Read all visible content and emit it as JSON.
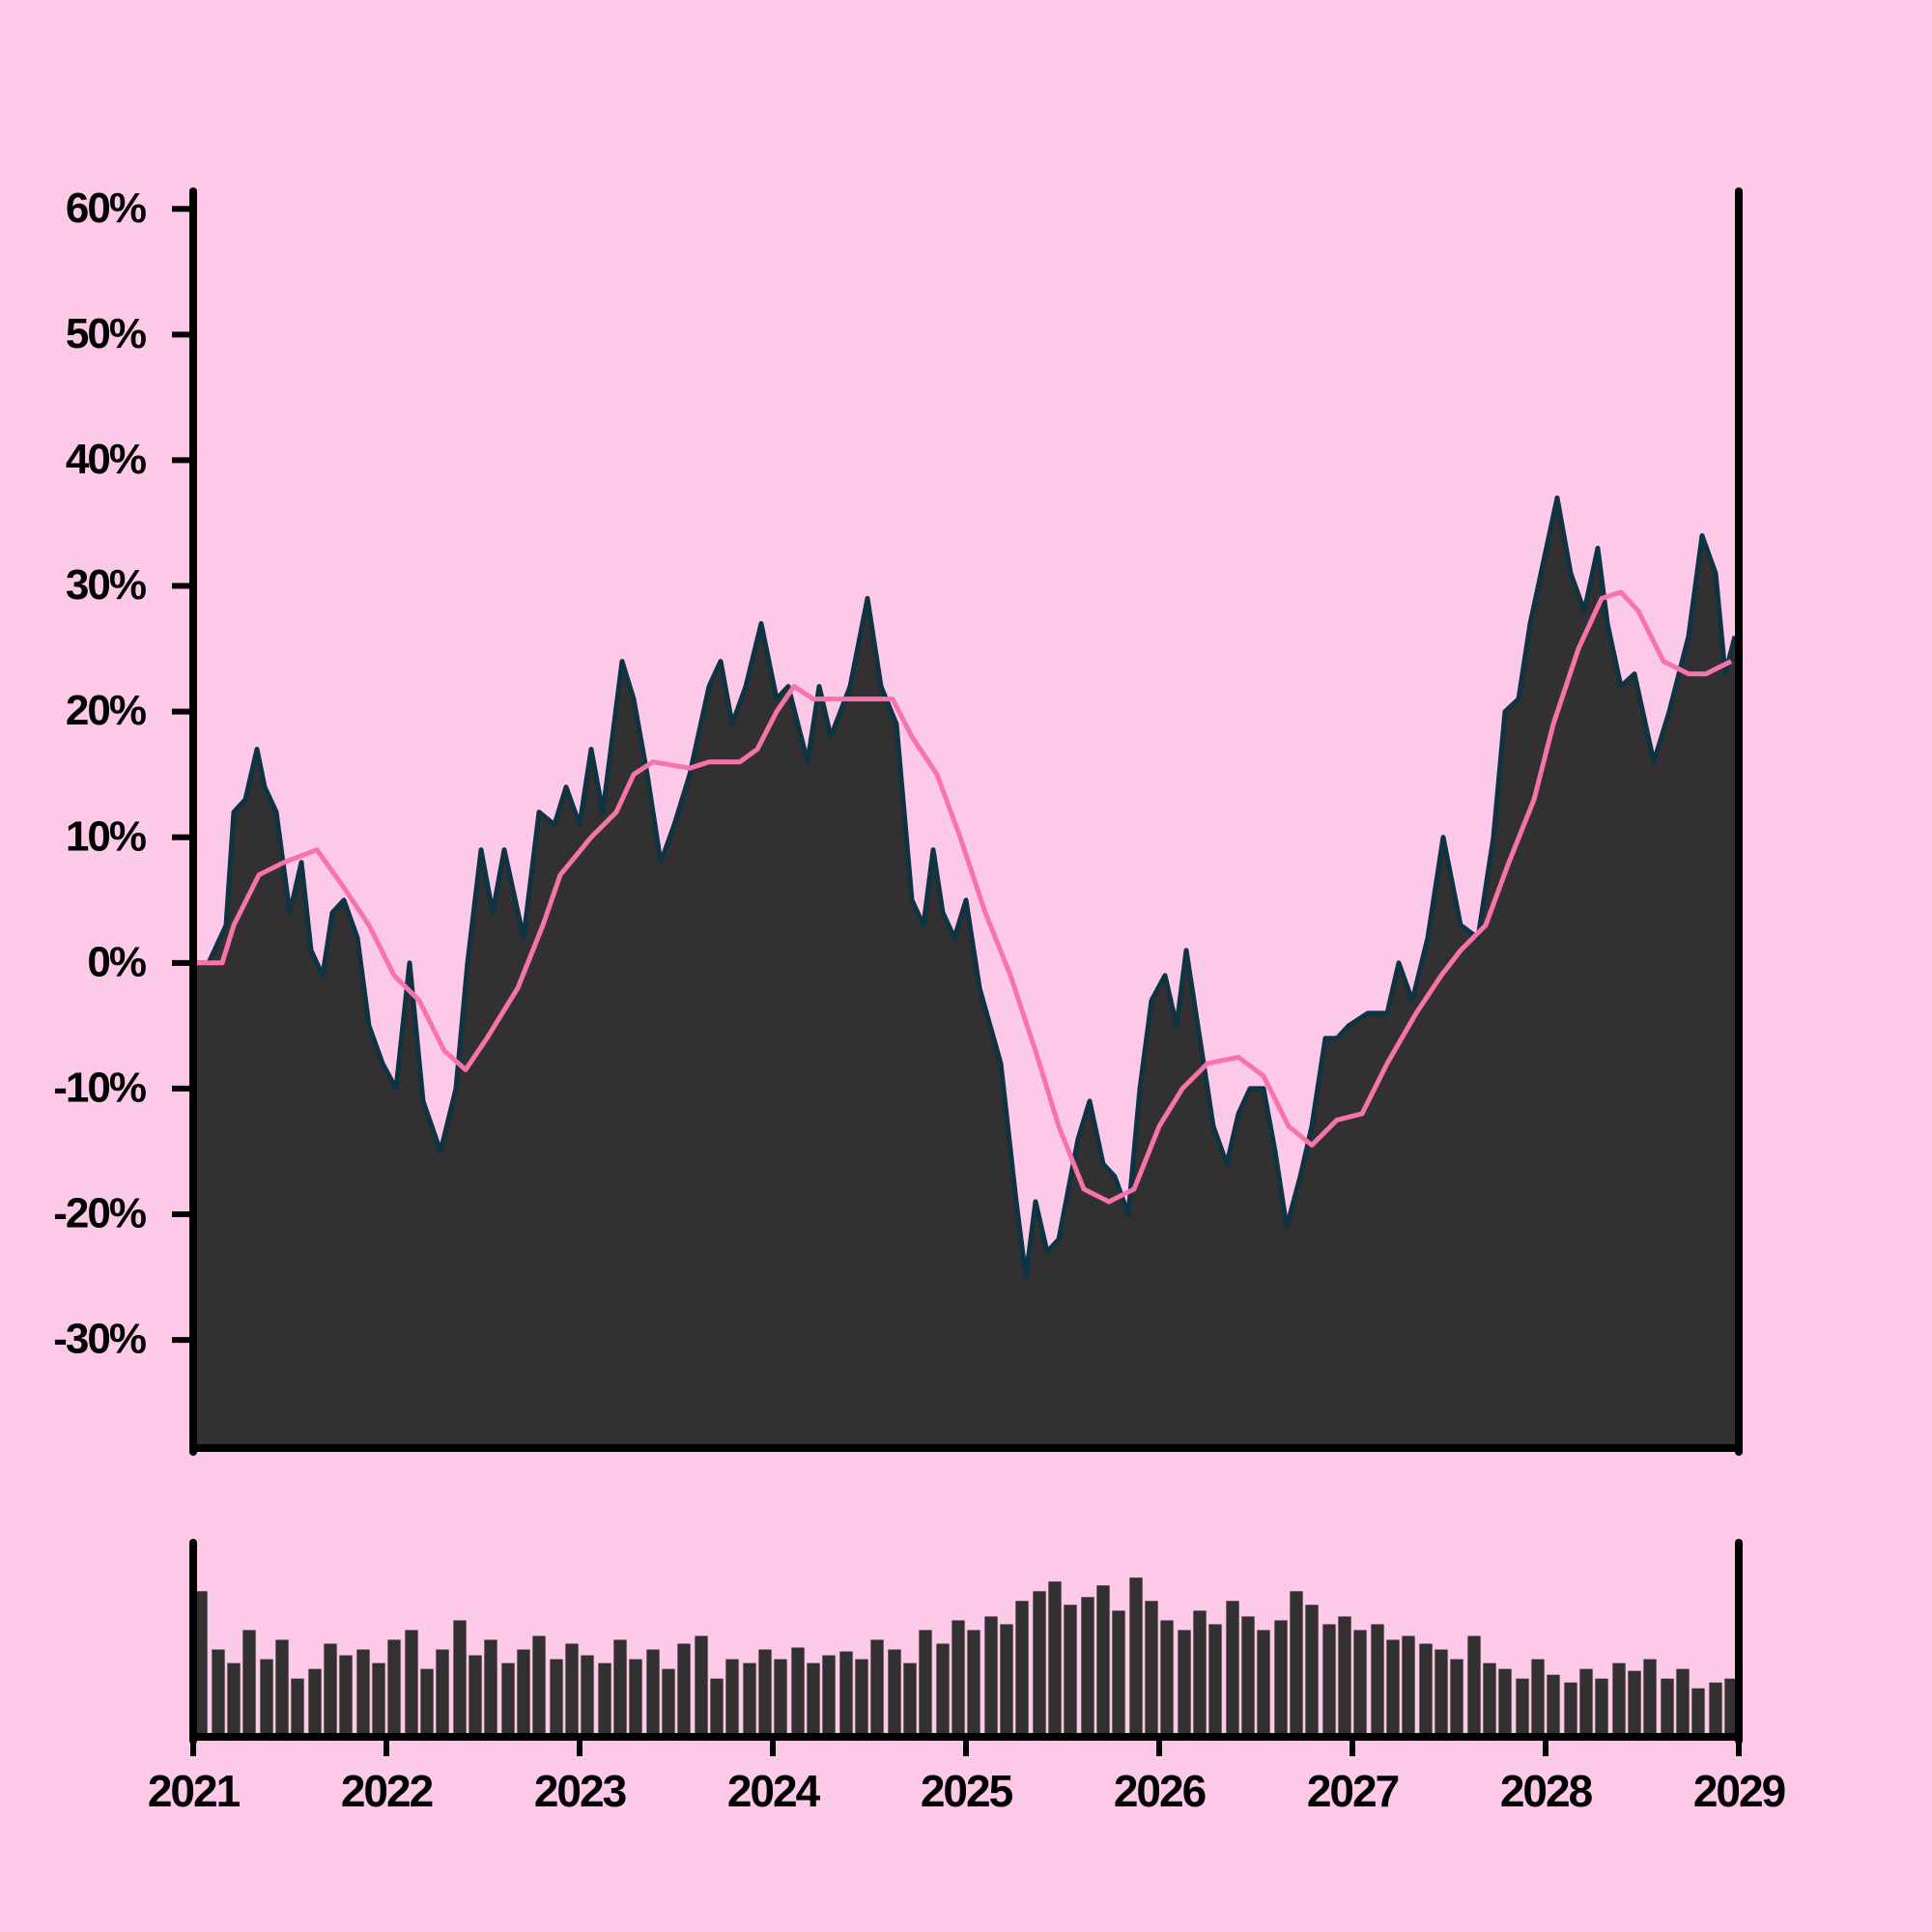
{
  "chart_data": [
    {
      "type": "area",
      "xlim": [
        2021,
        2029
      ],
      "ylim": [
        -38.6,
        61.4
      ],
      "yticks": [
        {
          "value": -30,
          "label": "-30%"
        },
        {
          "value": -20,
          "label": "-20%"
        },
        {
          "value": -10,
          "label": "-10%"
        },
        {
          "value": 0,
          "label": "0%"
        },
        {
          "value": 10,
          "label": "10%"
        },
        {
          "value": 20,
          "label": "20%"
        },
        {
          "value": 30,
          "label": "30%"
        },
        {
          "value": 40,
          "label": "40%"
        },
        {
          "value": 50,
          "label": "50%"
        },
        {
          "value": 60,
          "label": "60%"
        }
      ],
      "series": [
        {
          "type": "area",
          "color": "#333031",
          "edge_color": "#0e3343",
          "x": [
            2021.0,
            2021.08,
            2021.17,
            2021.21,
            2021.27,
            2021.33,
            2021.37,
            2021.43,
            2021.5,
            2021.56,
            2021.61,
            2021.67,
            2021.72,
            2021.78,
            2021.85,
            2021.91,
            2021.98,
            2022.05,
            2022.12,
            2022.19,
            2022.28,
            2022.36,
            2022.42,
            2022.49,
            2022.55,
            2022.61,
            2022.71,
            2022.79,
            2022.87,
            2022.93,
            2023.0,
            2023.06,
            2023.12,
            2023.22,
            2023.28,
            2023.35,
            2023.42,
            2023.49,
            2023.57,
            2023.67,
            2023.73,
            2023.79,
            2023.86,
            2023.94,
            2024.02,
            2024.08,
            2024.18,
            2024.24,
            2024.3,
            2024.4,
            2024.49,
            2024.56,
            2024.64,
            2024.72,
            2024.78,
            2024.83,
            2024.88,
            2024.94,
            2025.0,
            2025.07,
            2025.18,
            2025.26,
            2025.31,
            2025.36,
            2025.42,
            2025.48,
            2025.58,
            2025.64,
            2025.71,
            2025.77,
            2025.84,
            2025.9,
            2025.96,
            2026.03,
            2026.09,
            2026.14,
            2026.22,
            2026.28,
            2026.35,
            2026.41,
            2026.47,
            2026.54,
            2026.6,
            2026.66,
            2026.73,
            2026.79,
            2026.86,
            2026.92,
            2026.98,
            2027.08,
            2027.18,
            2027.24,
            2027.31,
            2027.39,
            2027.47,
            2027.56,
            2027.65,
            2027.73,
            2027.79,
            2027.86,
            2027.92,
            2027.99,
            2028.06,
            2028.13,
            2028.2,
            2028.27,
            2028.32,
            2028.39,
            2028.46,
            2028.56,
            2028.64,
            2028.74,
            2028.81,
            2028.88,
            2028.93,
            2028.98
          ],
          "values": [
            0,
            0,
            3,
            12,
            13,
            17,
            14,
            12,
            4,
            8,
            1,
            -1,
            4,
            5,
            2,
            -5,
            -8,
            -10,
            0,
            -11,
            -15,
            -10,
            0,
            9,
            4,
            9,
            2,
            12,
            11,
            14,
            11,
            17,
            12,
            24,
            21,
            15,
            8,
            11,
            15,
            22,
            24,
            19,
            22,
            27,
            21,
            22,
            16,
            22,
            18,
            22,
            29,
            22,
            19,
            5,
            3,
            9,
            4,
            2,
            5,
            -2,
            -8,
            -19,
            -25,
            -19,
            -23,
            -22,
            -14,
            -11,
            -16,
            -17,
            -20,
            -10,
            -3,
            -1,
            -5,
            1,
            -7,
            -13,
            -16,
            -12,
            -10,
            -10,
            -15,
            -21,
            -17,
            -13,
            -6,
            -6,
            -5,
            -4,
            -4,
            0,
            -3,
            2,
            10,
            3,
            2,
            10,
            20,
            21,
            27,
            32,
            37,
            31,
            28,
            33,
            27,
            22,
            23,
            16,
            20,
            26,
            34,
            31,
            23,
            26
          ]
        },
        {
          "type": "line",
          "color": "#f774ab",
          "x": [
            2021.02,
            2021.15,
            2021.21,
            2021.34,
            2021.47,
            2021.64,
            2021.78,
            2021.91,
            2022.04,
            2022.17,
            2022.3,
            2022.41,
            2022.52,
            2022.68,
            2022.81,
            2022.9,
            2023.06,
            2023.19,
            2023.28,
            2023.38,
            2023.57,
            2023.67,
            2023.83,
            2023.92,
            2024.02,
            2024.11,
            2024.21,
            2024.4,
            2024.5,
            2024.62,
            2024.72,
            2024.85,
            2024.97,
            2025.1,
            2025.23,
            2025.36,
            2025.48,
            2025.61,
            2025.74,
            2025.87,
            2026.0,
            2026.12,
            2026.25,
            2026.41,
            2026.54,
            2026.67,
            2026.79,
            2026.92,
            2027.05,
            2027.18,
            2027.33,
            2027.46,
            2027.56,
            2027.69,
            2027.81,
            2027.94,
            2028.04,
            2028.17,
            2028.29,
            2028.39,
            2028.48,
            2028.61,
            2028.74,
            2028.83,
            2028.96
          ],
          "values": [
            0,
            0,
            3,
            7,
            8,
            9,
            6,
            3,
            -1,
            -3,
            -7,
            -8.5,
            -6,
            -2,
            3,
            7,
            10,
            12,
            15,
            16,
            15.5,
            16,
            16,
            17,
            20,
            22,
            21,
            21,
            21,
            21,
            18,
            15,
            10,
            4,
            -1,
            -7,
            -13,
            -18,
            -19,
            -18,
            -13,
            -10,
            -8,
            -7.5,
            -9,
            -13,
            -14.5,
            -12.5,
            -12,
            -8,
            -4,
            -1,
            1,
            3,
            8,
            13,
            19,
            25,
            29,
            29.5,
            28,
            24,
            23,
            23,
            24
          ]
        }
      ]
    },
    {
      "type": "bar",
      "color": "#333031",
      "xlim": [
        2021,
        2029
      ],
      "ylim": [
        0,
        100
      ],
      "xticks": [
        2021,
        2022,
        2023,
        2024,
        2025,
        2026,
        2027,
        2028,
        2029
      ],
      "x": [
        2021.04,
        2021.13,
        2021.21,
        2021.29,
        2021.38,
        2021.46,
        2021.54,
        2021.63,
        2021.71,
        2021.79,
        2021.88,
        2021.96,
        2022.04,
        2022.13,
        2022.21,
        2022.29,
        2022.38,
        2022.46,
        2022.54,
        2022.63,
        2022.71,
        2022.79,
        2022.88,
        2022.96,
        2023.04,
        2023.13,
        2023.21,
        2023.29,
        2023.38,
        2023.46,
        2023.54,
        2023.63,
        2023.71,
        2023.79,
        2023.88,
        2023.96,
        2024.04,
        2024.13,
        2024.21,
        2024.29,
        2024.38,
        2024.46,
        2024.54,
        2024.63,
        2024.71,
        2024.79,
        2024.88,
        2024.96,
        2025.04,
        2025.13,
        2025.21,
        2025.29,
        2025.38,
        2025.46,
        2025.54,
        2025.63,
        2025.71,
        2025.79,
        2025.88,
        2025.96,
        2026.04,
        2026.13,
        2026.21,
        2026.29,
        2026.38,
        2026.46,
        2026.54,
        2026.63,
        2026.71,
        2026.79,
        2026.88,
        2026.96,
        2027.04,
        2027.13,
        2027.21,
        2027.29,
        2027.38,
        2027.46,
        2027.54,
        2027.63,
        2027.71,
        2027.79,
        2027.88,
        2027.96,
        2028.04,
        2028.13,
        2028.21,
        2028.29,
        2028.38,
        2028.46,
        2028.54,
        2028.63,
        2028.71,
        2028.79,
        2028.88,
        2028.96
      ],
      "values": [
        75,
        45,
        38,
        55,
        40,
        50,
        30,
        35,
        48,
        42,
        45,
        38,
        50,
        55,
        35,
        45,
        60,
        42,
        50,
        38,
        45,
        52,
        40,
        48,
        42,
        38,
        50,
        40,
        45,
        35,
        48,
        52,
        30,
        40,
        38,
        45,
        40,
        46,
        38,
        42,
        44,
        40,
        50,
        45,
        38,
        55,
        48,
        60,
        55,
        62,
        58,
        70,
        75,
        80,
        68,
        72,
        78,
        65,
        82,
        70,
        60,
        55,
        65,
        58,
        70,
        62,
        55,
        60,
        75,
        68,
        58,
        62,
        55,
        58,
        50,
        52,
        48,
        45,
        40,
        52,
        38,
        35,
        30,
        40,
        32,
        28,
        35,
        30,
        38,
        34,
        40,
        30,
        35,
        25,
        28,
        30
      ]
    }
  ]
}
